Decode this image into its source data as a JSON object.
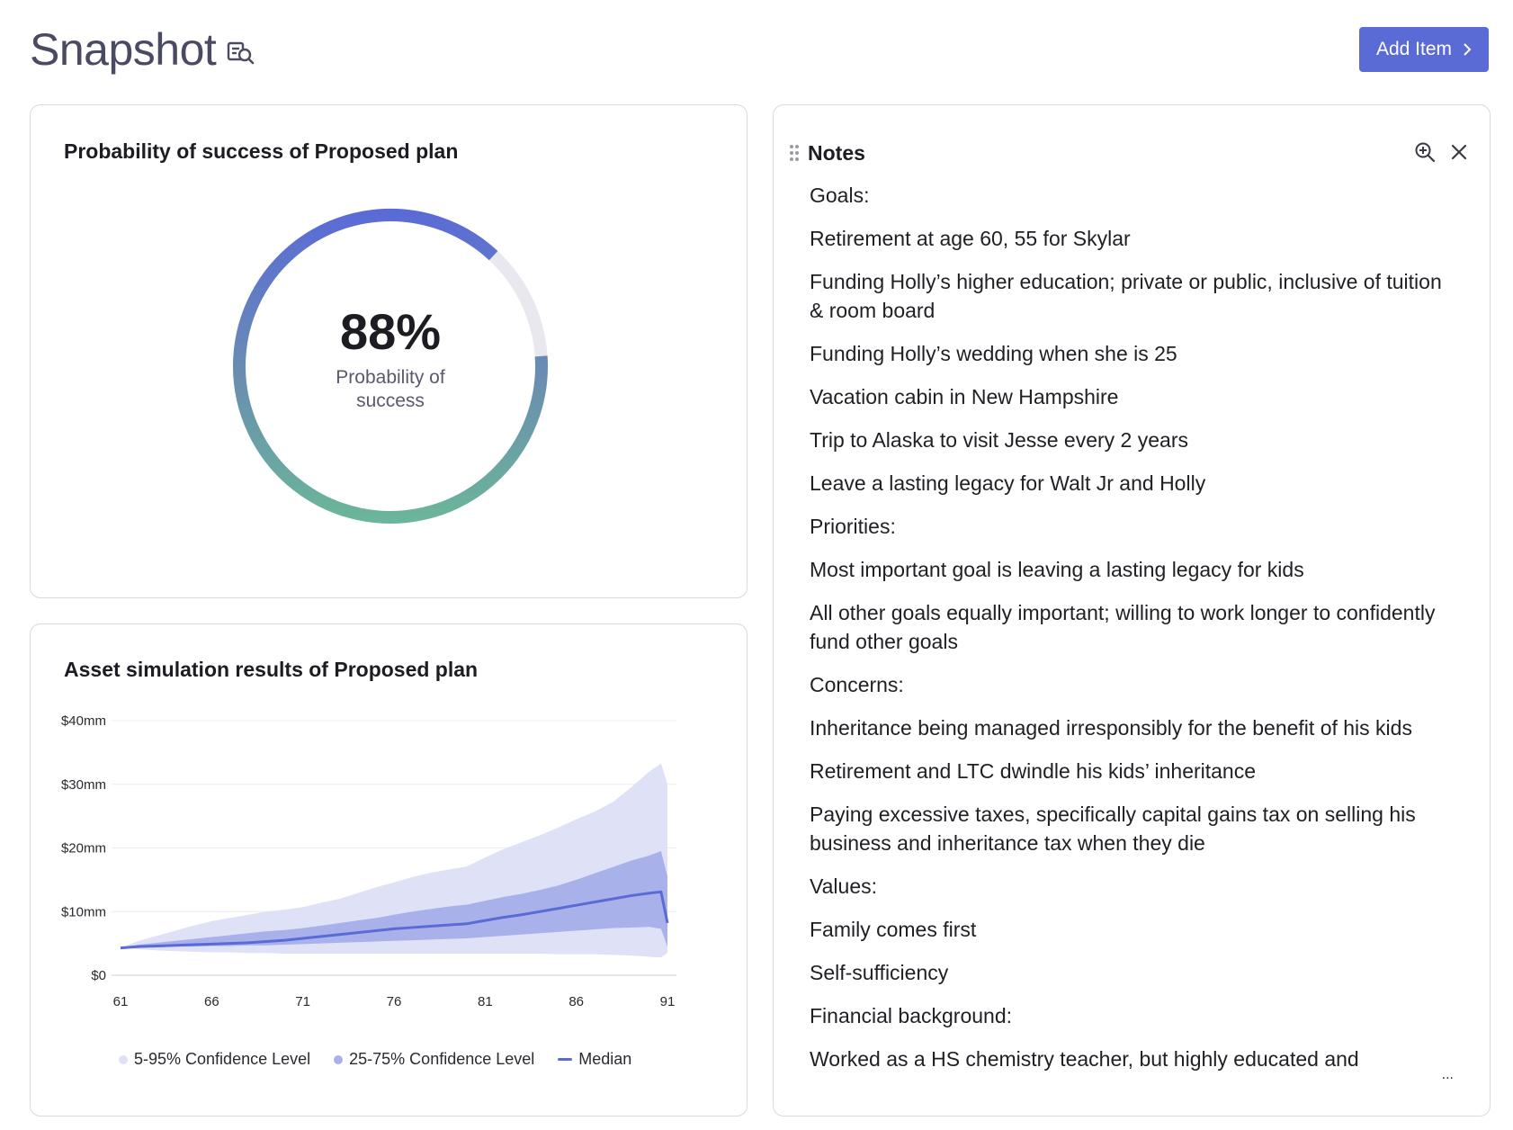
{
  "header": {
    "title": "Snapshot",
    "add_button_label": "Add Item"
  },
  "probability_card": {
    "title": "Probability of success of Proposed plan",
    "value": "88%",
    "value_fraction": 0.88,
    "label": "Probability of success",
    "colors": {
      "start": "#5b6bd6",
      "mid": "#6a8fb0",
      "end": "#6bb59a",
      "track": "#e8e8ee"
    }
  },
  "asset_card": {
    "title": "Asset simulation results of Proposed plan",
    "legend": {
      "band_95": "5-95% Confidence Level",
      "band_75": "25-75% Confidence Level",
      "median": "Median"
    }
  },
  "chart_data": {
    "type": "area",
    "title": "Asset simulation results of Proposed plan",
    "xlabel": "",
    "ylabel": "",
    "x": [
      61,
      62,
      63,
      64,
      65,
      66,
      67,
      68,
      69,
      70,
      71,
      72,
      73,
      74,
      75,
      76,
      77,
      78,
      79,
      80,
      81,
      82,
      83,
      84,
      85,
      86,
      87,
      88,
      89,
      90,
      91
    ],
    "xticks": [
      "61",
      "66",
      "71",
      "76",
      "81",
      "86",
      "91"
    ],
    "yticks": [
      "$0",
      "$10mm",
      "$20mm",
      "$30mm",
      "$40mm"
    ],
    "ylim": [
      0,
      40
    ],
    "series": [
      {
        "name": "5% bound",
        "values": [
          4.3,
          4.1,
          3.9,
          3.8,
          3.7,
          3.6,
          3.6,
          3.5,
          3.5,
          3.4,
          3.4,
          3.4,
          3.4,
          3.4,
          3.4,
          3.4,
          3.4,
          3.4,
          3.4,
          3.4,
          3.4,
          3.4,
          3.4,
          3.4,
          3.3,
          3.3,
          3.3,
          3.2,
          3.1,
          2.9,
          2.8
        ]
      },
      {
        "name": "95% bound",
        "values": [
          4.3,
          5.4,
          6.2,
          7.0,
          7.8,
          8.5,
          9.0,
          9.5,
          10.0,
          10.3,
          10.7,
          11.4,
          12.0,
          12.9,
          13.8,
          14.6,
          15.4,
          16.1,
          16.6,
          17.1,
          18.5,
          19.8,
          20.9,
          22.0,
          23.2,
          24.5,
          25.7,
          27.2,
          29.5,
          32.0,
          33.3
        ]
      },
      {
        "name": "25% bound",
        "values": [
          4.3,
          4.4,
          4.4,
          4.5,
          4.5,
          4.6,
          4.6,
          4.7,
          4.7,
          4.8,
          4.9,
          5.0,
          5.1,
          5.2,
          5.3,
          5.4,
          5.5,
          5.6,
          5.7,
          5.8,
          6.0,
          6.2,
          6.4,
          6.6,
          6.8,
          7.0,
          7.2,
          7.4,
          7.5,
          7.6,
          7.3
        ]
      },
      {
        "name": "75% bound",
        "values": [
          4.3,
          4.8,
          5.1,
          5.4,
          5.7,
          6.0,
          6.3,
          6.6,
          6.9,
          7.1,
          7.4,
          7.8,
          8.2,
          8.6,
          9.0,
          9.5,
          10.0,
          10.4,
          10.8,
          11.1,
          11.7,
          12.3,
          12.8,
          13.4,
          14.1,
          15.0,
          16.0,
          17.0,
          18.0,
          18.8,
          19.5
        ]
      },
      {
        "name": "Median",
        "values": [
          4.3,
          4.5,
          4.6,
          4.7,
          4.8,
          4.9,
          5.0,
          5.1,
          5.3,
          5.5,
          5.8,
          6.1,
          6.4,
          6.7,
          7.0,
          7.3,
          7.5,
          7.7,
          7.9,
          8.1,
          8.6,
          9.1,
          9.5,
          10.0,
          10.5,
          11.0,
          11.5,
          12.0,
          12.5,
          12.9,
          13.1
        ]
      }
    ],
    "tail_drop": {
      "x": 91,
      "median": 8.2,
      "band75_upper": 15.5,
      "band75_lower": 4.5,
      "band95_upper": 30.0,
      "band95_lower": 3.5
    },
    "colors": {
      "band_95": "#dfe2f6",
      "band_75": "#a9b1ea",
      "median": "#5b6bd6",
      "grid": "#ececf0"
    }
  },
  "notes": {
    "title": "Notes",
    "lines": [
      "Goals:",
      "Retirement at age 60, 55 for Skylar",
      "Funding Holly’s higher education; private or public, inclusive of tuition & room board",
      "Funding Holly’s wedding when she is 25",
      "Vacation cabin in New Hampshire",
      "Trip to Alaska to visit Jesse every 2 years",
      "Leave a lasting legacy for Walt Jr and Holly",
      "Priorities:",
      "Most important goal is leaving a lasting legacy for kids",
      "All other goals equally important; willing to work longer to confidently fund other goals",
      "Concerns:",
      "Inheritance being managed irresponsibly for the benefit of his kids",
      "Retirement and LTC dwindle his kids’ inheritance",
      "Paying excessive taxes, specifically capital gains tax on selling his business and inheritance tax when they die",
      "Values:",
      "Family comes first",
      "Self-sufficiency",
      "Financial background:",
      "Worked as a HS chemistry teacher, but highly educated and"
    ],
    "more_label": "..."
  }
}
